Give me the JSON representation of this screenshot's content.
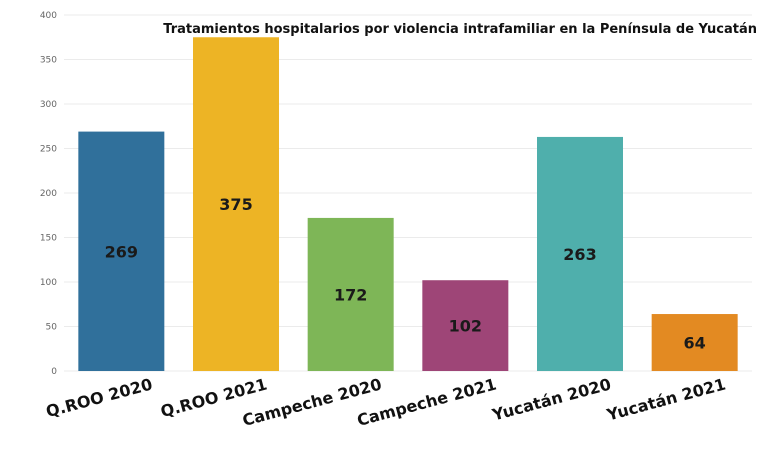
{
  "chart_data": {
    "type": "bar",
    "title": "Tratamientos hospitalarios por violencia intrafamiliar en la Península de Yucatán",
    "categories": [
      "Q.ROO 2020",
      "Q.ROO 2021",
      "Campeche 2020",
      "Campeche 2021",
      "Yucatán 2020",
      "Yucatán 2021"
    ],
    "values": [
      269,
      375,
      172,
      102,
      263,
      64
    ],
    "colors": [
      "#30709B",
      "#EDB425",
      "#7EB657",
      "#9E4577",
      "#4FAFAC",
      "#E38A22"
    ],
    "ylim": [
      0,
      400
    ],
    "yticks": [
      0,
      50,
      100,
      150,
      200,
      250,
      300,
      350,
      400
    ],
    "grid": true,
    "legend": "none"
  }
}
